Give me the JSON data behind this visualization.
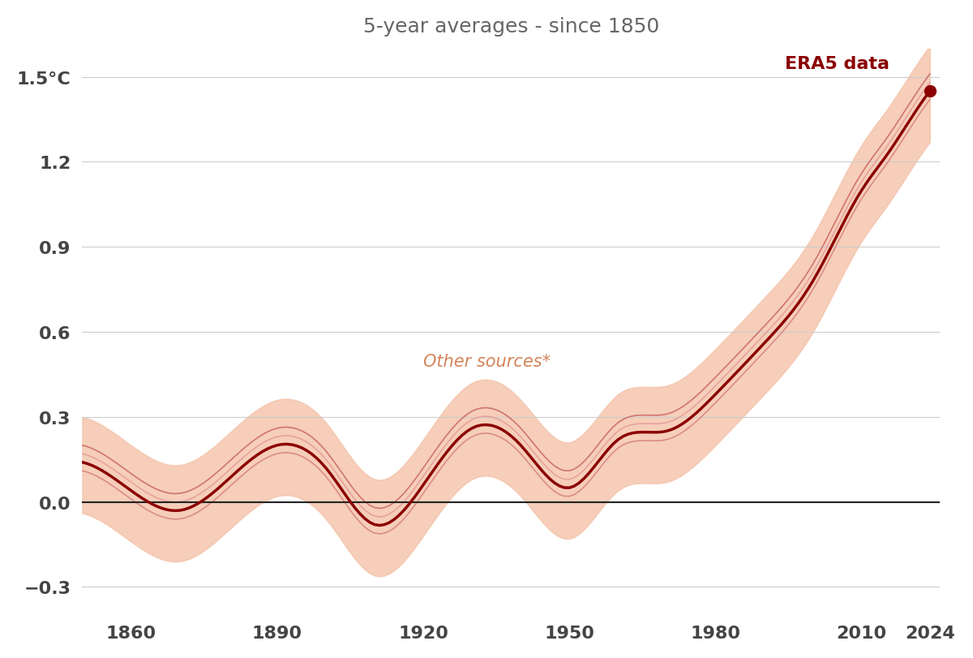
{
  "title": "5-year averages - since 1850",
  "title_color": "#666666",
  "title_fontsize": 18,
  "ylabel": "1.5°C",
  "background_color": "#ffffff",
  "era5_color": "#8B0000",
  "other_lines_colors": [
    "#c0504d",
    "#d07070",
    "#e09090"
  ],
  "band_color": "#f4c2a8",
  "zero_line_color": "#222222",
  "annotation_text": "ERA5 data",
  "annotation_color": "#8B0000",
  "other_sources_text": "Other sources*",
  "other_sources_color": "#d4845a",
  "ylim": [
    -0.42,
    1.6
  ],
  "yticks": [
    -0.3,
    0.0,
    0.3,
    0.6,
    0.9,
    1.2,
    1.5
  ],
  "xticks": [
    1860,
    1890,
    1920,
    1950,
    1980,
    2010,
    2024
  ],
  "xlim": [
    1850,
    2026
  ]
}
